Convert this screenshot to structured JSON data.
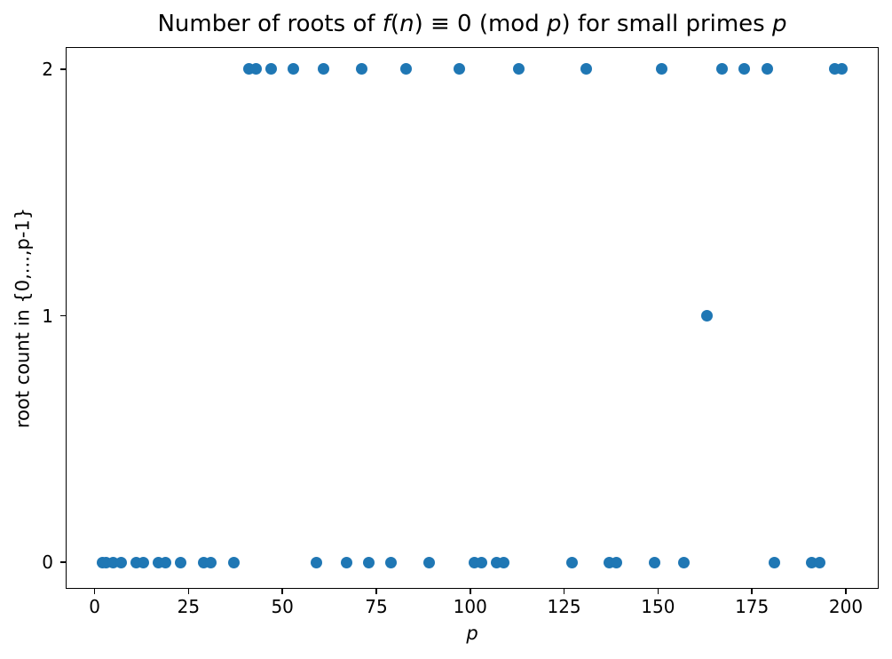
{
  "chart_data": {
    "type": "scatter",
    "title": "Number of roots of f(n) ≡ 0 (mod p) for small primes p",
    "title_segments": [
      {
        "t": "Number of roots of ",
        "i": false
      },
      {
        "t": "f",
        "i": true
      },
      {
        "t": "(",
        "i": false
      },
      {
        "t": "n",
        "i": true
      },
      {
        "t": ") ≡ 0 (mod ",
        "i": false
      },
      {
        "t": "p",
        "i": true
      },
      {
        "t": ") for small primes ",
        "i": false
      },
      {
        "t": "p",
        "i": true
      }
    ],
    "xlabel": "p",
    "ylabel": "root count in {0,...,p-1}",
    "xlim": [
      -7.7,
      208.75
    ],
    "ylim": [
      -0.108,
      2.09
    ],
    "xticks": [
      0,
      25,
      50,
      75,
      100,
      125,
      150,
      175,
      200
    ],
    "yticks": [
      0,
      1,
      2
    ],
    "grid": false,
    "legend": null,
    "marker_color": "#1f77b4",
    "x": [
      2,
      3,
      5,
      7,
      11,
      13,
      17,
      19,
      23,
      29,
      31,
      37,
      41,
      43,
      47,
      53,
      59,
      61,
      67,
      71,
      73,
      79,
      83,
      89,
      97,
      101,
      103,
      107,
      109,
      113,
      127,
      131,
      137,
      139,
      149,
      151,
      157,
      163,
      167,
      173,
      179,
      181,
      191,
      193,
      197,
      199
    ],
    "y": [
      0,
      0,
      0,
      0,
      0,
      0,
      0,
      0,
      0,
      0,
      0,
      0,
      2,
      2,
      2,
      2,
      0,
      2,
      0,
      2,
      0,
      0,
      2,
      0,
      2,
      0,
      0,
      0,
      0,
      2,
      0,
      2,
      0,
      0,
      0,
      2,
      0,
      1,
      2,
      2,
      2,
      0,
      0,
      0,
      2,
      2
    ]
  }
}
